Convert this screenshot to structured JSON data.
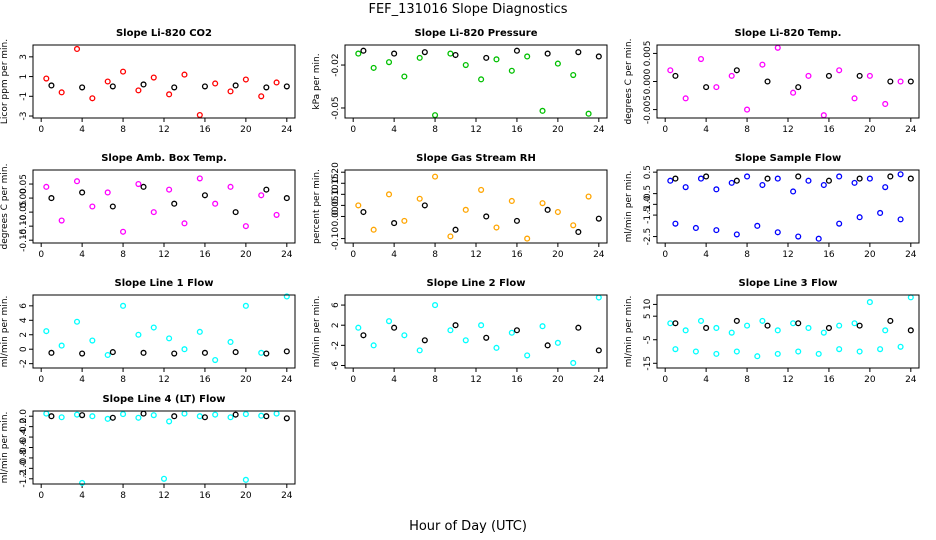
{
  "title": "FEF_131016  Slope Diagnostics",
  "xlabel": "Hour of Day (UTC)",
  "chart_data": [
    {
      "type": "scatter",
      "title": "Slope Li-820 CO2",
      "ylabel": "Licor ppm per min.",
      "xlim": [
        -0.8,
        24.8
      ],
      "xticks": [
        0,
        4,
        8,
        12,
        16,
        20,
        24
      ],
      "ylim": [
        -3.2,
        4.2
      ],
      "yticks": [
        -3,
        -1,
        1,
        3
      ],
      "series": [
        {
          "color": "#ff0000",
          "x": [
            0.5,
            2,
            3.5,
            5,
            6.5,
            8,
            9.5,
            11,
            12.5,
            14,
            15.5,
            17,
            18.5,
            20,
            21.5,
            23
          ],
          "values": [
            0.8,
            -0.6,
            3.8,
            -1.2,
            0.5,
            1.5,
            -0.4,
            0.9,
            -0.8,
            1.2,
            -2.9,
            0.3,
            -0.5,
            0.7,
            -1.0,
            0.4
          ]
        },
        {
          "color": "#000000",
          "x": [
            1,
            4,
            7,
            10,
            13,
            16,
            19,
            22,
            24
          ],
          "values": [
            0.1,
            -0.1,
            0,
            0.2,
            -0.1,
            0,
            0.1,
            -0.1,
            0
          ]
        }
      ]
    },
    {
      "type": "scatter",
      "title": "Slope Li-820 Pressure",
      "ylabel": "kPa per min.",
      "xlim": [
        -0.8,
        24.8
      ],
      "xticks": [
        0,
        4,
        8,
        12,
        16,
        20,
        24
      ],
      "ylim": [
        -0.057,
        -0.006
      ],
      "yticks": [
        -0.05,
        -0.02
      ],
      "series": [
        {
          "color": "#00c000",
          "x": [
            0.5,
            2,
            3.5,
            5,
            6.5,
            8,
            9.5,
            11,
            12.5,
            14,
            15.5,
            17,
            18.5,
            20,
            21.5,
            23
          ],
          "values": [
            -0.012,
            -0.022,
            -0.018,
            -0.028,
            -0.015,
            -0.055,
            -0.012,
            -0.02,
            -0.03,
            -0.016,
            -0.024,
            -0.014,
            -0.052,
            -0.019,
            -0.027,
            -0.054
          ]
        },
        {
          "color": "#000000",
          "x": [
            1,
            4,
            7,
            10,
            13,
            16,
            19,
            22,
            24
          ],
          "values": [
            -0.01,
            -0.012,
            -0.011,
            -0.013,
            -0.015,
            -0.01,
            -0.012,
            -0.011,
            -0.014
          ]
        }
      ]
    },
    {
      "type": "scatter",
      "title": "Slope Li-820 Temp.",
      "ylabel": "degrees C per min.",
      "xlim": [
        -0.8,
        24.8
      ],
      "xticks": [
        0,
        4,
        8,
        12,
        16,
        20,
        24
      ],
      "ylim": [
        -0.0065,
        0.0065
      ],
      "yticks": [
        -0.005,
        {
          "value": 0,
          "label": "0.000"
        },
        0.005
      ],
      "series": [
        {
          "color": "#ff00ff",
          "x": [
            0.5,
            2,
            3.5,
            5,
            6.5,
            8,
            9.5,
            11,
            12.5,
            14,
            15.5,
            17,
            18.5,
            20,
            21.5,
            23
          ],
          "values": [
            0.002,
            -0.003,
            0.004,
            -0.001,
            0.001,
            -0.005,
            0.003,
            0.006,
            -0.002,
            0.001,
            -0.006,
            0.002,
            -0.003,
            0.001,
            -0.004,
            0
          ]
        },
        {
          "color": "#000000",
          "x": [
            1,
            4,
            7,
            10,
            13,
            16,
            19,
            22,
            24
          ],
          "values": [
            0.001,
            -0.001,
            0.002,
            0,
            -0.001,
            0.001,
            0.001,
            0,
            0
          ]
        }
      ]
    },
    {
      "type": "scatter",
      "title": "Slope Amb. Box Temp.",
      "ylabel": "degrees C per min.",
      "xlim": [
        -0.8,
        24.8
      ],
      "xticks": [
        0,
        4,
        8,
        12,
        16,
        20,
        24
      ],
      "ylim": [
        -0.16,
        0.1
      ],
      "yticks": [
        -0.15,
        {
          "value": -0.1,
          "label": "-0.10"
        },
        -0.05,
        {
          "value": 0,
          "label": "0.00"
        },
        0.05
      ],
      "series": [
        {
          "color": "#ff00ff",
          "x": [
            0.5,
            2,
            3.5,
            5,
            6.5,
            8,
            9.5,
            11,
            12.5,
            14,
            15.5,
            17,
            18.5,
            20,
            21.5,
            23
          ],
          "values": [
            0.04,
            -0.08,
            0.06,
            -0.03,
            0.02,
            -0.12,
            0.05,
            -0.05,
            0.03,
            -0.09,
            0.07,
            -0.02,
            0.04,
            -0.1,
            0.01,
            -0.06
          ]
        },
        {
          "color": "#000000",
          "x": [
            1,
            4,
            7,
            10,
            13,
            16,
            19,
            22,
            24
          ],
          "values": [
            0,
            0.02,
            -0.03,
            0.04,
            -0.02,
            0.01,
            -0.05,
            0.03,
            0
          ]
        }
      ]
    },
    {
      "type": "scatter",
      "title": "Slope Gas Stream RH",
      "ylabel": "percent per min.",
      "xlim": [
        -0.8,
        24.8
      ],
      "xticks": [
        0,
        4,
        8,
        12,
        16,
        20,
        24
      ],
      "ylim": [
        -0.12,
        0.21
      ],
      "yticks": [
        {
          "value": -0.1,
          "label": "-0.10"
        },
        {
          "value": 0,
          "label": "0.00"
        },
        0.05,
        {
          "value": 0.1,
          "label": "0.10"
        },
        0.15,
        {
          "value": 0.2,
          "label": "0.20"
        }
      ],
      "series": [
        {
          "color": "#ffa500",
          "x": [
            0.5,
            2,
            3.5,
            5,
            6.5,
            8,
            9.5,
            11,
            12.5,
            14,
            15.5,
            17,
            18.5,
            20,
            21.5,
            23
          ],
          "values": [
            0.05,
            -0.06,
            0.1,
            -0.02,
            0.08,
            0.18,
            -0.09,
            0.03,
            0.12,
            -0.05,
            0.07,
            -0.1,
            0.06,
            0.02,
            -0.04,
            0.09
          ]
        },
        {
          "color": "#000000",
          "x": [
            1,
            4,
            7,
            10,
            13,
            16,
            19,
            22,
            24
          ],
          "values": [
            0.02,
            -0.03,
            0.05,
            -0.06,
            0,
            -0.02,
            0.03,
            -0.07,
            -0.01
          ]
        }
      ]
    },
    {
      "type": "scatter",
      "title": "Slope Sample Flow",
      "ylabel": "ml/min per min.",
      "xlim": [
        -0.8,
        24.8
      ],
      "xticks": [
        0,
        4,
        8,
        12,
        16,
        20,
        24
      ],
      "ylim": [
        -2.8,
        0.6
      ],
      "yticks": [
        -2.5,
        -1.5,
        {
          "value": -1,
          "label": "-1.0"
        },
        -0.5,
        0.5
      ],
      "series": [
        {
          "color": "#0000ff",
          "x": [
            0.5,
            2,
            3.5,
            5,
            6.5,
            8,
            9.5,
            11,
            12.5,
            14,
            15.5,
            17,
            18.5,
            20,
            21.5,
            23
          ],
          "values": [
            0.1,
            -0.2,
            0.2,
            -0.3,
            0,
            0.3,
            -0.1,
            0.2,
            -0.4,
            0.1,
            -0.1,
            0.3,
            0,
            0.2,
            -0.2,
            0.4
          ]
        },
        {
          "color": "#0000ff",
          "x": [
            1,
            3,
            5,
            7,
            9,
            11,
            13,
            15,
            17,
            19,
            21,
            23
          ],
          "values": [
            -1.9,
            -2.1,
            -2.2,
            -2.4,
            -2,
            -2.3,
            -2.5,
            -2.6,
            -1.9,
            -1.6,
            -1.4,
            -1.7
          ]
        },
        {
          "color": "#000000",
          "x": [
            1,
            4,
            7,
            10,
            13,
            16,
            19,
            22,
            24
          ],
          "values": [
            0.2,
            0.3,
            0.1,
            0.2,
            0.3,
            0.1,
            0.2,
            0.3,
            0.2
          ]
        }
      ]
    },
    {
      "type": "scatter",
      "title": "Slope Line 1 Flow",
      "ylabel": "ml/min per min.",
      "xlim": [
        -0.8,
        24.8
      ],
      "xticks": [
        0,
        4,
        8,
        12,
        16,
        20,
        24
      ],
      "ylim": [
        -2.6,
        7.5
      ],
      "yticks": [
        -2,
        0,
        2,
        4,
        6
      ],
      "series": [
        {
          "color": "#00ffff",
          "x": [
            0.5,
            2,
            3.5,
            5,
            6.5,
            8,
            9.5,
            11,
            12.5,
            14,
            15.5,
            17,
            18.5,
            20,
            21.5,
            24
          ],
          "values": [
            2.5,
            0.5,
            3.8,
            1.2,
            -0.8,
            6,
            2,
            3,
            1.5,
            0,
            2.4,
            -1.5,
            1,
            6,
            -0.5,
            7.3
          ]
        },
        {
          "color": "#000000",
          "x": [
            1,
            4,
            7,
            10,
            13,
            16,
            19,
            22,
            24
          ],
          "values": [
            -0.5,
            -0.6,
            -0.4,
            -0.5,
            -0.6,
            -0.5,
            -0.4,
            -0.6,
            -0.3
          ]
        }
      ]
    },
    {
      "type": "scatter",
      "title": "Slope Line 2 Flow",
      "ylabel": "ml/min per min.",
      "xlim": [
        -0.8,
        24.8
      ],
      "xticks": [
        0,
        4,
        8,
        12,
        16,
        20,
        24
      ],
      "ylim": [
        -6.5,
        8
      ],
      "yticks": [
        -6,
        -2,
        2,
        6
      ],
      "series": [
        {
          "color": "#00ffff",
          "x": [
            0.5,
            2,
            3.5,
            5,
            6.5,
            8,
            9.5,
            11,
            12.5,
            14,
            15.5,
            17,
            18.5,
            20,
            21.5,
            24
          ],
          "values": [
            1.5,
            -2,
            2.8,
            0,
            -3,
            6,
            1,
            -1,
            2,
            -2.5,
            0.5,
            -4,
            1.8,
            -1.5,
            -5.5,
            7.5
          ]
        },
        {
          "color": "#000000",
          "x": [
            1,
            4,
            7,
            10,
            13,
            16,
            19,
            22,
            24
          ],
          "values": [
            0,
            1.5,
            -1,
            2,
            -0.5,
            1,
            -2,
            1.5,
            -3
          ]
        }
      ]
    },
    {
      "type": "scatter",
      "title": "Slope Line 3 Flow",
      "ylabel": "ml/min per min.",
      "xlim": [
        -0.8,
        24.8
      ],
      "xticks": [
        0,
        4,
        8,
        12,
        16,
        20,
        24
      ],
      "ylim": [
        -17,
        14
      ],
      "yticks": [
        -15,
        -5,
        5,
        10
      ],
      "series": [
        {
          "color": "#00ffff",
          "x": [
            0.5,
            2,
            3.5,
            5,
            6.5,
            8,
            9.5,
            11,
            12.5,
            14,
            15.5,
            17,
            18.5,
            20,
            21.5,
            24
          ],
          "values": [
            2,
            -1,
            3,
            0,
            -2,
            1,
            3,
            -1,
            2,
            0,
            -2,
            1,
            2,
            11,
            -1,
            13
          ]
        },
        {
          "color": "#00ffff",
          "x": [
            1,
            3,
            5,
            7,
            9,
            11,
            13,
            15,
            17,
            19,
            21,
            23
          ],
          "values": [
            -9,
            -10,
            -11,
            -10,
            -12,
            -11,
            -10,
            -11,
            -9,
            -10,
            -9,
            -8
          ]
        },
        {
          "color": "#000000",
          "x": [
            1,
            4,
            7,
            10,
            13,
            16,
            19,
            22,
            24
          ],
          "values": [
            2,
            0,
            3,
            1,
            2,
            0,
            1,
            3,
            -1
          ]
        }
      ]
    },
    {
      "type": "scatter",
      "title": "Slope Line 4 (LT) Flow",
      "ylabel": "ml/min per min.",
      "xlim": [
        -0.8,
        24.8
      ],
      "xticks": [
        0,
        4,
        8,
        12,
        16,
        20,
        24
      ],
      "ylim": [
        -1.3,
        0.1
      ],
      "yticks": [
        -1.2,
        {
          "value": -1,
          "label": "-1.0"
        },
        -0.8,
        -0.6,
        -0.4,
        -0.2,
        {
          "value": 0,
          "label": "0.0"
        }
      ],
      "series": [
        {
          "color": "#00ffff",
          "x": [
            0.5,
            2,
            3.5,
            5,
            6.5,
            8,
            9.5,
            11,
            12.5,
            14,
            15.5,
            17,
            18.5,
            20,
            21.5,
            23
          ],
          "values": [
            0.05,
            -0.02,
            0.03,
            0,
            -0.05,
            0.04,
            -0.03,
            0.02,
            -0.1,
            0.05,
            0,
            0.03,
            -0.02,
            0.04,
            0.01,
            0.05
          ]
        },
        {
          "color": "#00ffff",
          "x": [
            4,
            12,
            20
          ],
          "values": [
            -1.28,
            -1.2,
            -1.22
          ]
        },
        {
          "color": "#000000",
          "x": [
            1,
            4,
            7,
            10,
            13,
            16,
            19,
            22,
            24
          ],
          "values": [
            0,
            0.02,
            -0.03,
            0.05,
            0,
            -0.02,
            0.03,
            0,
            -0.04
          ]
        }
      ]
    }
  ]
}
